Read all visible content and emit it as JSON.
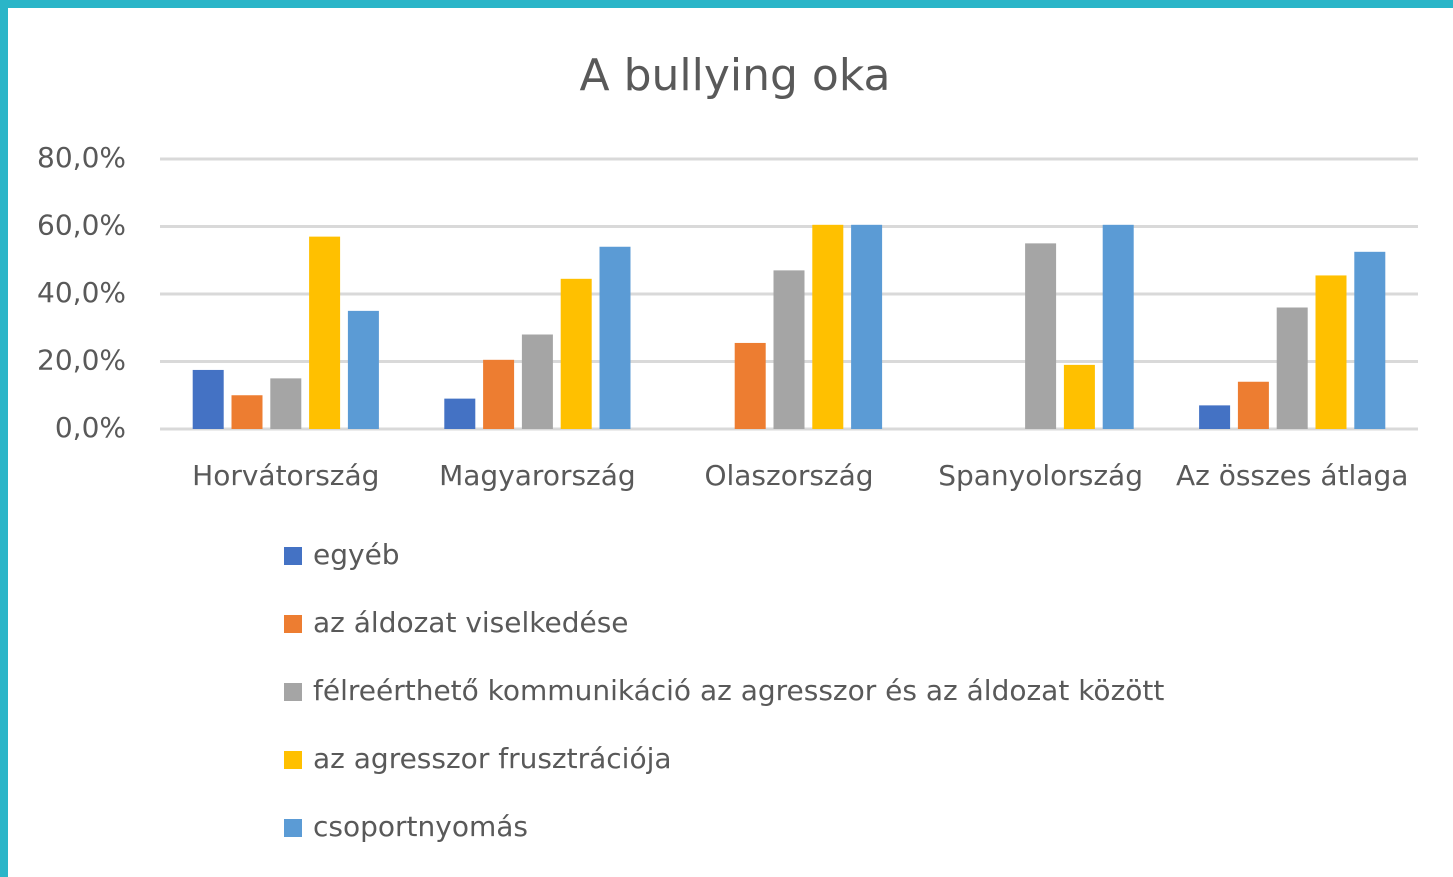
{
  "chart_data": {
    "type": "bar",
    "title": "A bullying oka",
    "categories": [
      "Horvátország",
      "Magyarország",
      "Olaszország",
      "Spanyolország",
      "Az összes átlaga"
    ],
    "series": [
      {
        "name": "egyéb",
        "color": "#4472c4",
        "values": [
          17.5,
          9,
          0,
          0,
          7
        ]
      },
      {
        "name": "az áldozat viselkedése",
        "color": "#ed7d31",
        "values": [
          10,
          20.5,
          25.5,
          0,
          14
        ]
      },
      {
        "name": "félreérthető kommunikáció az agresszor és az áldozat között",
        "color": "#a5a5a5",
        "values": [
          15,
          28,
          47,
          55,
          36
        ]
      },
      {
        "name": "az agresszor frusztrációja",
        "color": "#ffc000",
        "values": [
          57,
          44.5,
          60.5,
          19,
          45.5
        ]
      },
      {
        "name": "csoportnyomás",
        "color": "#5b9bd5",
        "values": [
          35,
          54,
          60.5,
          60.5,
          52.5
        ]
      }
    ],
    "ylim": [
      0,
      80
    ],
    "yticks": [
      {
        "value": 0,
        "label": "0,0%"
      },
      {
        "value": 20,
        "label": "20,0%"
      },
      {
        "value": 40,
        "label": "40,0%"
      },
      {
        "value": 60,
        "label": "60,0%"
      },
      {
        "value": 80,
        "label": "80,0%"
      }
    ],
    "grid": true,
    "legend": "bottom"
  }
}
